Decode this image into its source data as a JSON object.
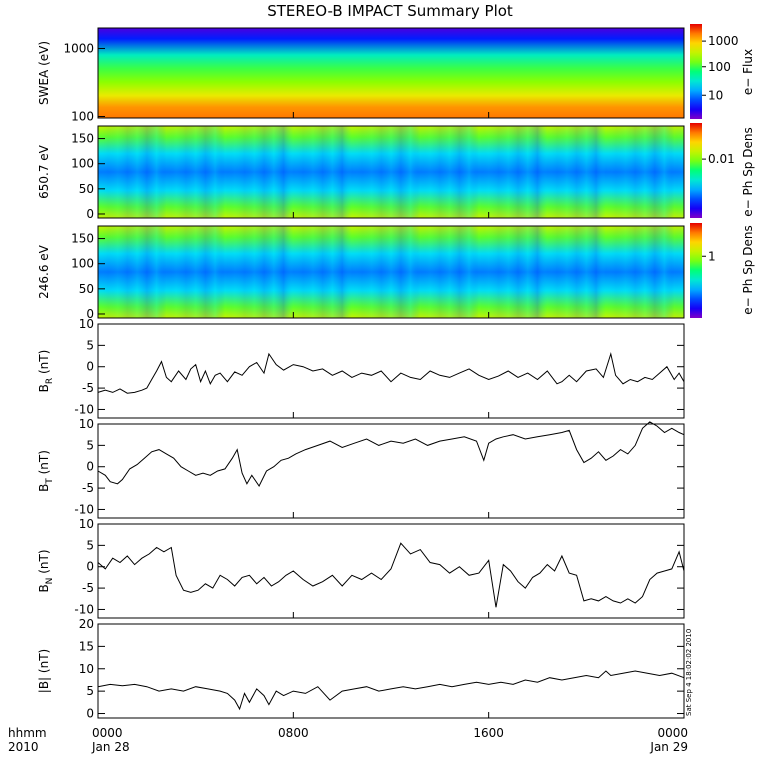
{
  "title": "STEREO-B IMPACT Summary Plot",
  "stamp": "Sat Sep  4 18:02:02 2010",
  "time_axis": {
    "corner_labels": [
      "hhmm",
      "2010"
    ],
    "ticks": [
      {
        "hour": 0,
        "label": "0000",
        "sub": "Jan 28"
      },
      {
        "hour": 8,
        "label": "0800",
        "sub": ""
      },
      {
        "hour": 16,
        "label": "1600",
        "sub": ""
      },
      {
        "hour": 24,
        "label": "0000",
        "sub": "Jan 29"
      }
    ],
    "range_hours": [
      0,
      24
    ]
  },
  "spectrograms": [
    {
      "id": "swea",
      "ylabel": "SWEA (eV)",
      "yscale": "log",
      "ylim": [
        95,
        2000
      ],
      "yticks": [
        {
          "v": 100,
          "label": "100"
        },
        {
          "v": 1000,
          "label": "1000"
        }
      ],
      "colorbar_label": "e− Flux",
      "colorbar_ticks": [
        {
          "f": 0.25,
          "label": "10"
        },
        {
          "f": 0.55,
          "label": "100"
        },
        {
          "f": 0.82,
          "label": "1000"
        }
      ]
    },
    {
      "id": "pad650",
      "ylabel": "650.7 eV",
      "yscale": "linear",
      "ylim": [
        -8,
        175
      ],
      "yticks": [
        {
          "v": 0,
          "label": "0"
        },
        {
          "v": 50,
          "label": "50"
        },
        {
          "v": 100,
          "label": "100"
        },
        {
          "v": 150,
          "label": "150"
        }
      ],
      "colorbar_label": "e− Ph Sp Dens",
      "colorbar_ticks": [
        {
          "f": 0.62,
          "label": "0.01"
        }
      ]
    },
    {
      "id": "pad246",
      "ylabel": "246.6 eV",
      "yscale": "linear",
      "ylim": [
        -8,
        175
      ],
      "yticks": [
        {
          "v": 0,
          "label": "0"
        },
        {
          "v": 50,
          "label": "50"
        },
        {
          "v": 100,
          "label": "100"
        },
        {
          "v": 150,
          "label": "150"
        }
      ],
      "colorbar_label": "e− Ph Sp Dens",
      "colorbar_ticks": [
        {
          "f": 0.65,
          "label": "1"
        }
      ]
    }
  ],
  "chart_data": [
    {
      "type": "line",
      "name": "BR",
      "ylabel_main": "B",
      "ylabel_sub": "R",
      "ylabel_unit": " (nT)",
      "ylim": [
        -12,
        10
      ],
      "yticks": [
        10,
        5,
        0,
        -5,
        -10
      ],
      "x": [
        0,
        0.3,
        0.6,
        0.9,
        1.2,
        1.5,
        1.8,
        2.0,
        2.2,
        2.4,
        2.6,
        2.8,
        3.0,
        3.3,
        3.6,
        3.8,
        4.0,
        4.2,
        4.4,
        4.6,
        4.8,
        5.0,
        5.3,
        5.6,
        5.9,
        6.2,
        6.5,
        6.8,
        7.0,
        7.3,
        7.6,
        8.0,
        8.4,
        8.8,
        9.2,
        9.6,
        10.0,
        10.4,
        10.8,
        11.2,
        11.6,
        12.0,
        12.4,
        12.8,
        13.2,
        13.6,
        14.0,
        14.4,
        14.8,
        15.2,
        15.6,
        16.0,
        16.4,
        16.8,
        17.2,
        17.6,
        18.0,
        18.4,
        18.8,
        19.0,
        19.3,
        19.6,
        20.0,
        20.4,
        20.7,
        21.0,
        21.2,
        21.5,
        21.8,
        22.1,
        22.4,
        22.7,
        23.0,
        23.3,
        23.6,
        23.8,
        24.0
      ],
      "y": [
        -6.0,
        -5.5,
        -6.0,
        -5.2,
        -6.2,
        -6.0,
        -5.5,
        -5.0,
        -3.0,
        -1.0,
        1.2,
        -2.5,
        -3.5,
        -1.0,
        -3.0,
        -0.5,
        0.5,
        -3.5,
        -1.0,
        -4.0,
        -2.0,
        -1.5,
        -3.5,
        -1.2,
        -2.0,
        0.0,
        1.0,
        -1.5,
        3.0,
        0.5,
        -0.8,
        0.5,
        0.0,
        -1.0,
        -0.5,
        -2.0,
        -1.0,
        -2.5,
        -1.5,
        -2.0,
        -1.0,
        -3.5,
        -1.5,
        -2.5,
        -3.0,
        -1.0,
        -2.0,
        -2.5,
        -1.5,
        -0.5,
        -2.0,
        -3.0,
        -2.2,
        -1.0,
        -2.5,
        -1.5,
        -3.0,
        -1.0,
        -4.0,
        -3.5,
        -2.0,
        -3.5,
        -1.0,
        -0.5,
        -2.5,
        3.0,
        -2.0,
        -4.0,
        -3.0,
        -3.5,
        -2.5,
        -3.0,
        -1.5,
        0.0,
        -3.0,
        -1.5,
        -3.5
      ]
    },
    {
      "type": "line",
      "name": "BT",
      "ylabel_main": "B",
      "ylabel_sub": "T",
      "ylabel_unit": " (nT)",
      "ylim": [
        -12,
        10
      ],
      "yticks": [
        10,
        5,
        0,
        -5,
        -10
      ],
      "x": [
        0,
        0.3,
        0.5,
        0.8,
        1.0,
        1.3,
        1.6,
        1.9,
        2.2,
        2.5,
        2.8,
        3.1,
        3.4,
        3.7,
        4.0,
        4.3,
        4.6,
        4.9,
        5.2,
        5.5,
        5.7,
        5.9,
        6.1,
        6.3,
        6.6,
        6.9,
        7.2,
        7.5,
        7.8,
        8.1,
        8.5,
        9.0,
        9.5,
        10.0,
        10.5,
        11.0,
        11.5,
        12.0,
        12.5,
        13.0,
        13.5,
        14.0,
        14.5,
        15.0,
        15.5,
        15.8,
        16.0,
        16.3,
        16.6,
        17.0,
        17.5,
        18.0,
        18.5,
        19.0,
        19.3,
        19.6,
        19.9,
        20.2,
        20.5,
        20.8,
        21.1,
        21.4,
        21.7,
        22.0,
        22.3,
        22.6,
        22.9,
        23.2,
        23.5,
        23.8,
        24.0
      ],
      "y": [
        -1.0,
        -2.0,
        -3.5,
        -4.0,
        -3.0,
        -0.5,
        0.5,
        2.0,
        3.5,
        4.0,
        3.0,
        2.0,
        0.0,
        -1.0,
        -2.0,
        -1.5,
        -2.0,
        -1.0,
        -0.5,
        2.0,
        4.0,
        -1.5,
        -4.0,
        -2.0,
        -4.5,
        -1.0,
        0.0,
        1.5,
        2.0,
        3.0,
        4.0,
        5.0,
        6.0,
        4.5,
        5.5,
        6.5,
        5.0,
        6.0,
        5.5,
        6.5,
        5.0,
        6.0,
        6.5,
        7.0,
        6.0,
        1.5,
        5.5,
        6.5,
        7.0,
        7.5,
        6.5,
        7.0,
        7.5,
        8.0,
        8.5,
        4.0,
        1.0,
        2.0,
        3.5,
        1.5,
        2.5,
        4.0,
        3.0,
        5.0,
        9.0,
        10.5,
        9.5,
        8.0,
        9.0,
        8.0,
        7.5
      ]
    },
    {
      "type": "line",
      "name": "BN",
      "ylabel_main": "B",
      "ylabel_sub": "N",
      "ylabel_unit": " (nT)",
      "ylim": [
        -12,
        10
      ],
      "yticks": [
        10,
        5,
        0,
        -5,
        -10
      ],
      "x": [
        0,
        0.3,
        0.6,
        0.9,
        1.2,
        1.5,
        1.8,
        2.1,
        2.4,
        2.7,
        3.0,
        3.2,
        3.5,
        3.8,
        4.1,
        4.4,
        4.7,
        5.0,
        5.3,
        5.6,
        5.9,
        6.2,
        6.5,
        6.8,
        7.1,
        7.4,
        7.7,
        8.0,
        8.4,
        8.8,
        9.2,
        9.6,
        10.0,
        10.4,
        10.8,
        11.2,
        11.6,
        12.0,
        12.4,
        12.8,
        13.2,
        13.6,
        14.0,
        14.4,
        14.8,
        15.2,
        15.6,
        16.0,
        16.3,
        16.6,
        16.9,
        17.2,
        17.5,
        17.8,
        18.1,
        18.4,
        18.7,
        19.0,
        19.3,
        19.6,
        19.9,
        20.2,
        20.5,
        20.8,
        21.1,
        21.4,
        21.7,
        22.0,
        22.3,
        22.6,
        22.9,
        23.2,
        23.5,
        23.8,
        24.0
      ],
      "y": [
        1.0,
        -0.5,
        2.0,
        1.0,
        2.5,
        0.5,
        2.0,
        3.0,
        4.5,
        3.5,
        4.5,
        -2.0,
        -5.5,
        -6.0,
        -5.5,
        -4.0,
        -5.0,
        -2.0,
        -3.0,
        -4.5,
        -2.5,
        -2.0,
        -4.0,
        -2.5,
        -4.5,
        -3.5,
        -2.0,
        -1.0,
        -3.0,
        -4.5,
        -3.5,
        -2.0,
        -4.5,
        -2.0,
        -3.0,
        -1.5,
        -3.0,
        -0.5,
        5.5,
        3.0,
        4.0,
        1.0,
        0.5,
        -1.5,
        0.0,
        -2.0,
        -1.5,
        1.5,
        -9.5,
        0.5,
        -1.0,
        -3.5,
        -5.0,
        -2.5,
        -1.5,
        0.5,
        -1.0,
        2.5,
        -1.5,
        -2.0,
        -8.0,
        -7.5,
        -8.0,
        -7.0,
        -8.0,
        -8.5,
        -7.5,
        -8.5,
        -7.0,
        -3.0,
        -1.5,
        -1.0,
        -0.5,
        3.5,
        -1.0
      ]
    },
    {
      "type": "line",
      "name": "|B|",
      "ylabel_main": "|B|",
      "ylabel_sub": "",
      "ylabel_unit": " (nT)",
      "ylim": [
        -1,
        20
      ],
      "yticks": [
        20,
        15,
        10,
        5,
        0
      ],
      "x": [
        0,
        0.5,
        1.0,
        1.5,
        2.0,
        2.5,
        3.0,
        3.5,
        4.0,
        4.5,
        5.0,
        5.3,
        5.6,
        5.8,
        6.0,
        6.2,
        6.5,
        6.8,
        7.0,
        7.3,
        7.6,
        8.0,
        8.5,
        9.0,
        9.5,
        10.0,
        10.5,
        11.0,
        11.5,
        12.0,
        12.5,
        13.0,
        13.5,
        14.0,
        14.5,
        15.0,
        15.5,
        16.0,
        16.5,
        17.0,
        17.5,
        18.0,
        18.5,
        19.0,
        19.5,
        20.0,
        20.5,
        20.8,
        21.0,
        21.5,
        22.0,
        22.5,
        23.0,
        23.5,
        24.0
      ],
      "y": [
        6.0,
        6.5,
        6.2,
        6.5,
        6.0,
        5.0,
        5.5,
        5.0,
        6.0,
        5.5,
        5.0,
        4.5,
        3.0,
        1.0,
        4.5,
        2.5,
        5.5,
        4.0,
        2.0,
        5.0,
        4.0,
        5.0,
        4.5,
        6.0,
        3.0,
        5.0,
        5.5,
        6.0,
        5.0,
        5.5,
        6.0,
        5.5,
        6.0,
        6.5,
        6.0,
        6.5,
        7.0,
        6.5,
        7.0,
        6.5,
        7.5,
        7.0,
        8.0,
        7.5,
        8.0,
        8.5,
        8.0,
        9.5,
        8.5,
        9.0,
        9.5,
        9.0,
        8.5,
        9.0,
        8.0
      ]
    }
  ]
}
